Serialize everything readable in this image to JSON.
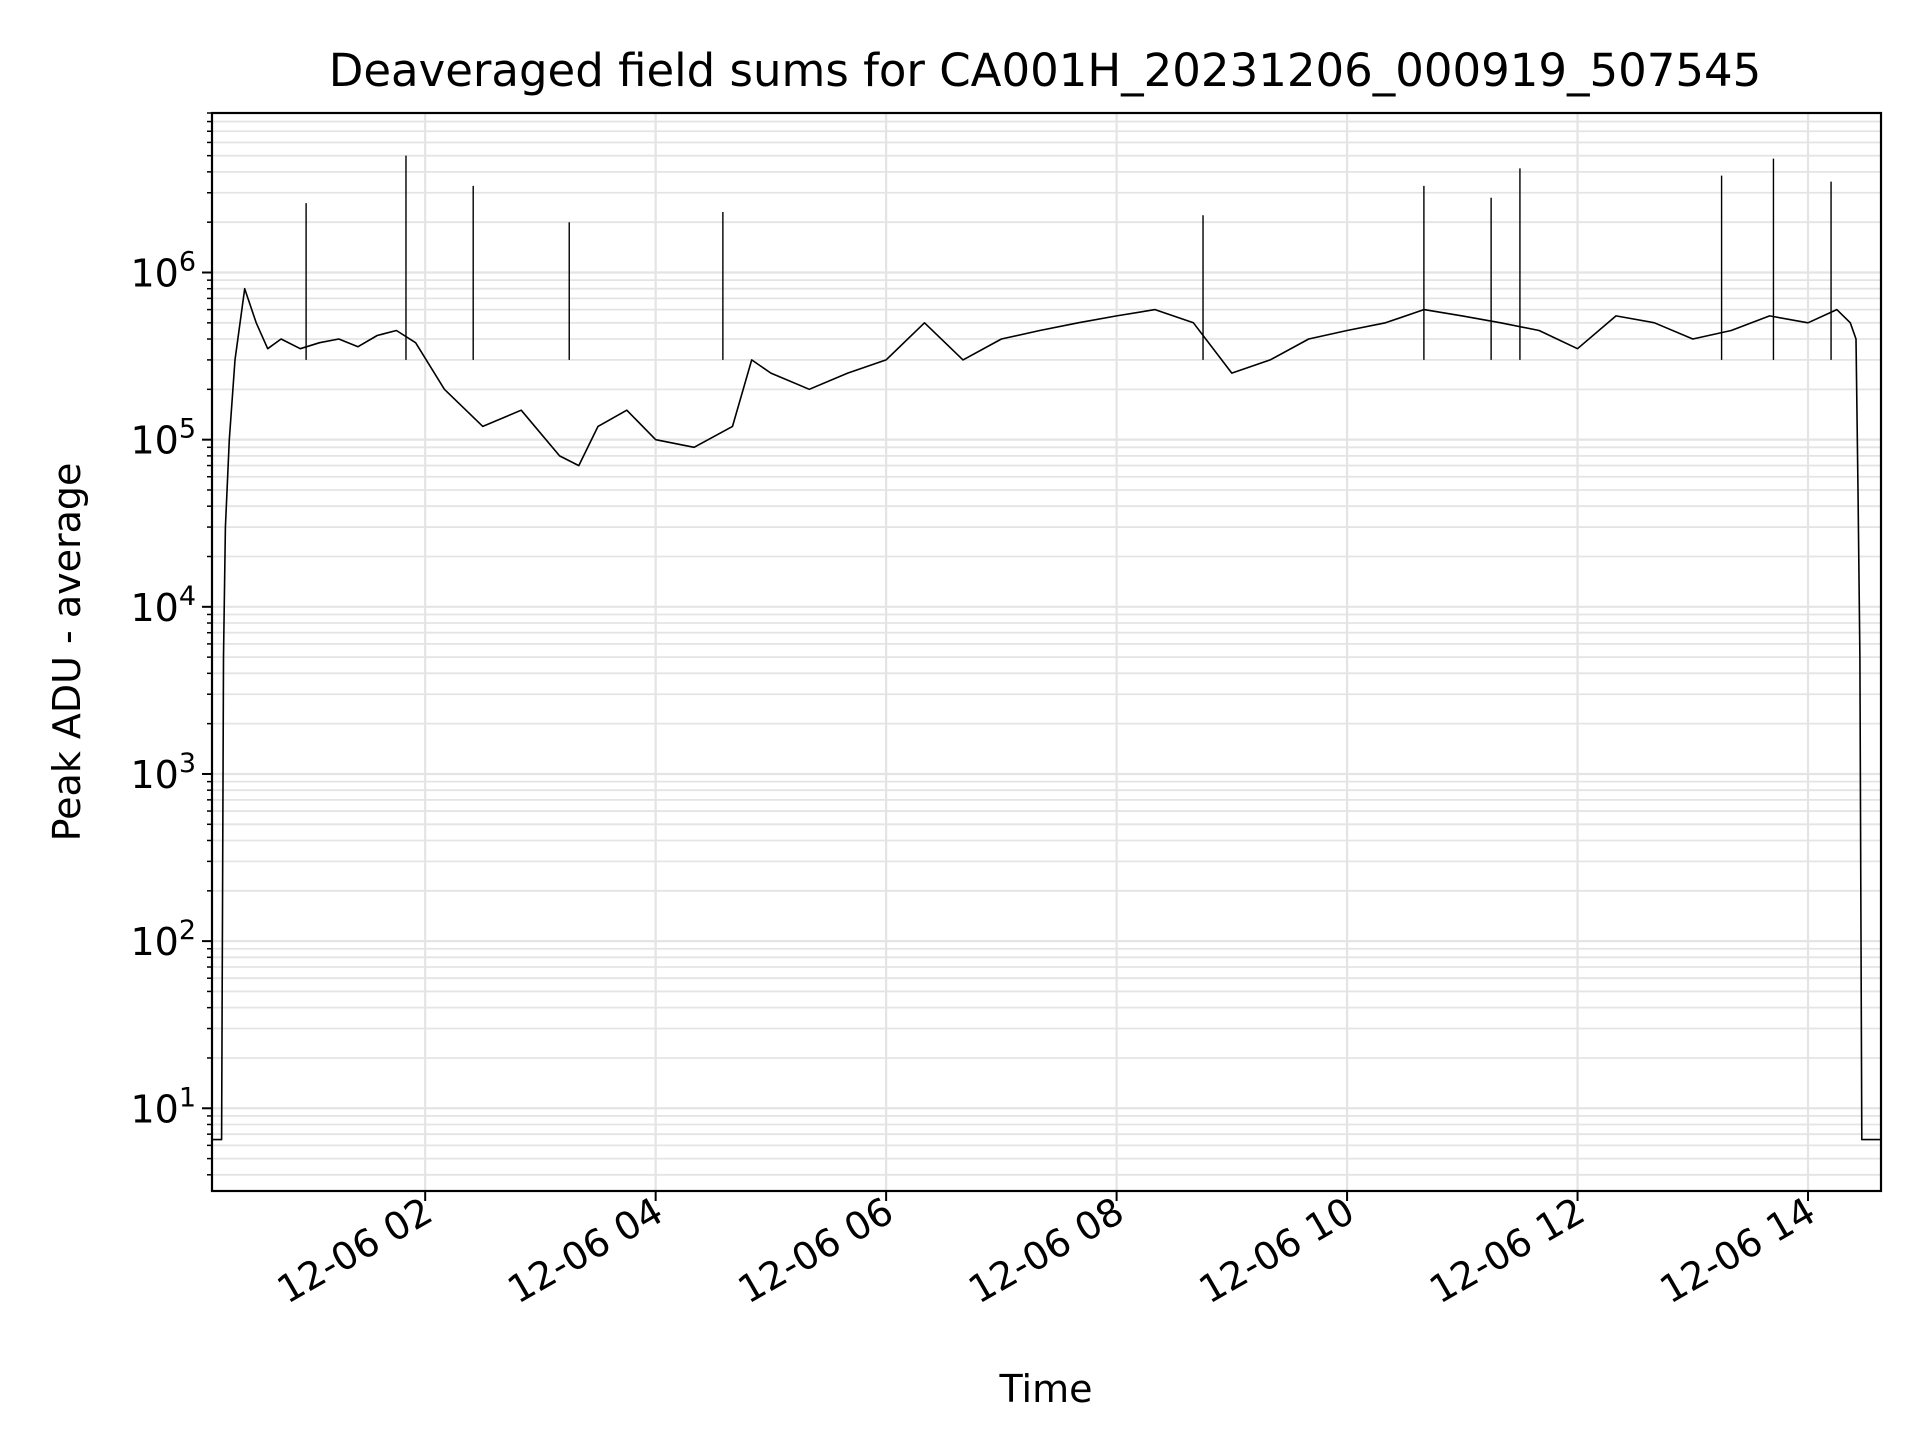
{
  "chart_data": {
    "type": "line",
    "title": "Deaveraged field sums for CA001H_20231206_000919_507545",
    "xlabel": "Time",
    "ylabel": "Peak ADU - average",
    "yscale": "log",
    "ylim": [
      3.2,
      9000000
    ],
    "xlim": [
      "2023-12-06 00:09",
      "2023-12-06 14:38"
    ],
    "grid": true,
    "line_color": "#000000",
    "x_ticks": [
      {
        "value": "2023-12-06 02:00",
        "label": "12-06 02"
      },
      {
        "value": "2023-12-06 04:00",
        "label": "12-06 04"
      },
      {
        "value": "2023-12-06 06:00",
        "label": "12-06 06"
      },
      {
        "value": "2023-12-06 08:00",
        "label": "12-06 08"
      },
      {
        "value": "2023-12-06 10:00",
        "label": "12-06 10"
      },
      {
        "value": "2023-12-06 12:00",
        "label": "12-06 12"
      },
      {
        "value": "2023-12-06 14:00",
        "label": "12-06 14"
      }
    ],
    "y_ticks": [
      {
        "value": 10,
        "base": "10",
        "exp": "1"
      },
      {
        "value": 100,
        "base": "10",
        "exp": "2"
      },
      {
        "value": 1000,
        "base": "10",
        "exp": "3"
      },
      {
        "value": 10000,
        "base": "10",
        "exp": "4"
      },
      {
        "value": 100000,
        "base": "10",
        "exp": "5"
      },
      {
        "value": 1000000,
        "base": "10",
        "exp": "6"
      }
    ],
    "series": [
      {
        "x": [
          "2023-12-06 00:09",
          "2023-12-06 00:14",
          "2023-12-06 00:15",
          "2023-12-06 00:16",
          "2023-12-06 00:18",
          "2023-12-06 00:21",
          "2023-12-06 00:26",
          "2023-12-06 00:32",
          "2023-12-06 00:38",
          "2023-12-06 00:45",
          "2023-12-06 00:55",
          "2023-12-06 01:05",
          "2023-12-06 01:15",
          "2023-12-06 01:25",
          "2023-12-06 01:35",
          "2023-12-06 01:45",
          "2023-12-06 01:55",
          "2023-12-06 02:10",
          "2023-12-06 02:30",
          "2023-12-06 02:50",
          "2023-12-06 03:10",
          "2023-12-06 03:20",
          "2023-12-06 03:30",
          "2023-12-06 03:45",
          "2023-12-06 04:00",
          "2023-12-06 04:20",
          "2023-12-06 04:40",
          "2023-12-06 04:50",
          "2023-12-06 05:00",
          "2023-12-06 05:20",
          "2023-12-06 05:40",
          "2023-12-06 06:00",
          "2023-12-06 06:20",
          "2023-12-06 06:40",
          "2023-12-06 07:00",
          "2023-12-06 07:20",
          "2023-12-06 07:40",
          "2023-12-06 08:00",
          "2023-12-06 08:20",
          "2023-12-06 08:40",
          "2023-12-06 09:00",
          "2023-12-06 09:20",
          "2023-12-06 09:40",
          "2023-12-06 10:00",
          "2023-12-06 10:20",
          "2023-12-06 10:40",
          "2023-12-06 11:00",
          "2023-12-06 11:20",
          "2023-12-06 11:40",
          "2023-12-06 12:00",
          "2023-12-06 12:20",
          "2023-12-06 12:40",
          "2023-12-06 13:00",
          "2023-12-06 13:20",
          "2023-12-06 13:40",
          "2023-12-06 14:00",
          "2023-12-06 14:15",
          "2023-12-06 14:22",
          "2023-12-06 14:25",
          "2023-12-06 14:26",
          "2023-12-06 14:27",
          "2023-12-06 14:28",
          "2023-12-06 14:38"
        ],
        "y": [
          6.5,
          6.5,
          5000,
          30000,
          100000,
          300000,
          800000,
          500000,
          350000,
          400000,
          350000,
          380000,
          400000,
          360000,
          420000,
          450000,
          380000,
          200000,
          120000,
          150000,
          80000,
          70000,
          120000,
          150000,
          100000,
          90000,
          120000,
          300000,
          250000,
          200000,
          250000,
          300000,
          500000,
          300000,
          400000,
          450000,
          500000,
          550000,
          600000,
          500000,
          250000,
          300000,
          400000,
          450000,
          500000,
          600000,
          550000,
          500000,
          450000,
          350000,
          550000,
          500000,
          400000,
          450000,
          550000,
          500000,
          600000,
          500000,
          400000,
          50000,
          5000,
          6.5,
          6.5
        ]
      }
    ],
    "spikes": [
      {
        "x": "2023-12-06 01:50",
        "y": 5000000
      },
      {
        "x": "2023-12-06 02:25",
        "y": 3300000
      },
      {
        "x": "2023-12-06 00:58",
        "y": 2600000
      },
      {
        "x": "2023-12-06 04:35",
        "y": 2300000
      },
      {
        "x": "2023-12-06 03:15",
        "y": 2000000
      },
      {
        "x": "2023-12-06 11:30",
        "y": 4200000
      },
      {
        "x": "2023-12-06 13:42",
        "y": 4800000
      },
      {
        "x": "2023-12-06 14:12",
        "y": 3500000
      },
      {
        "x": "2023-12-06 10:40",
        "y": 3300000
      },
      {
        "x": "2023-12-06 13:15",
        "y": 3800000
      },
      {
        "x": "2023-12-06 08:45",
        "y": 2200000
      },
      {
        "x": "2023-12-06 11:15",
        "y": 2800000
      }
    ]
  }
}
